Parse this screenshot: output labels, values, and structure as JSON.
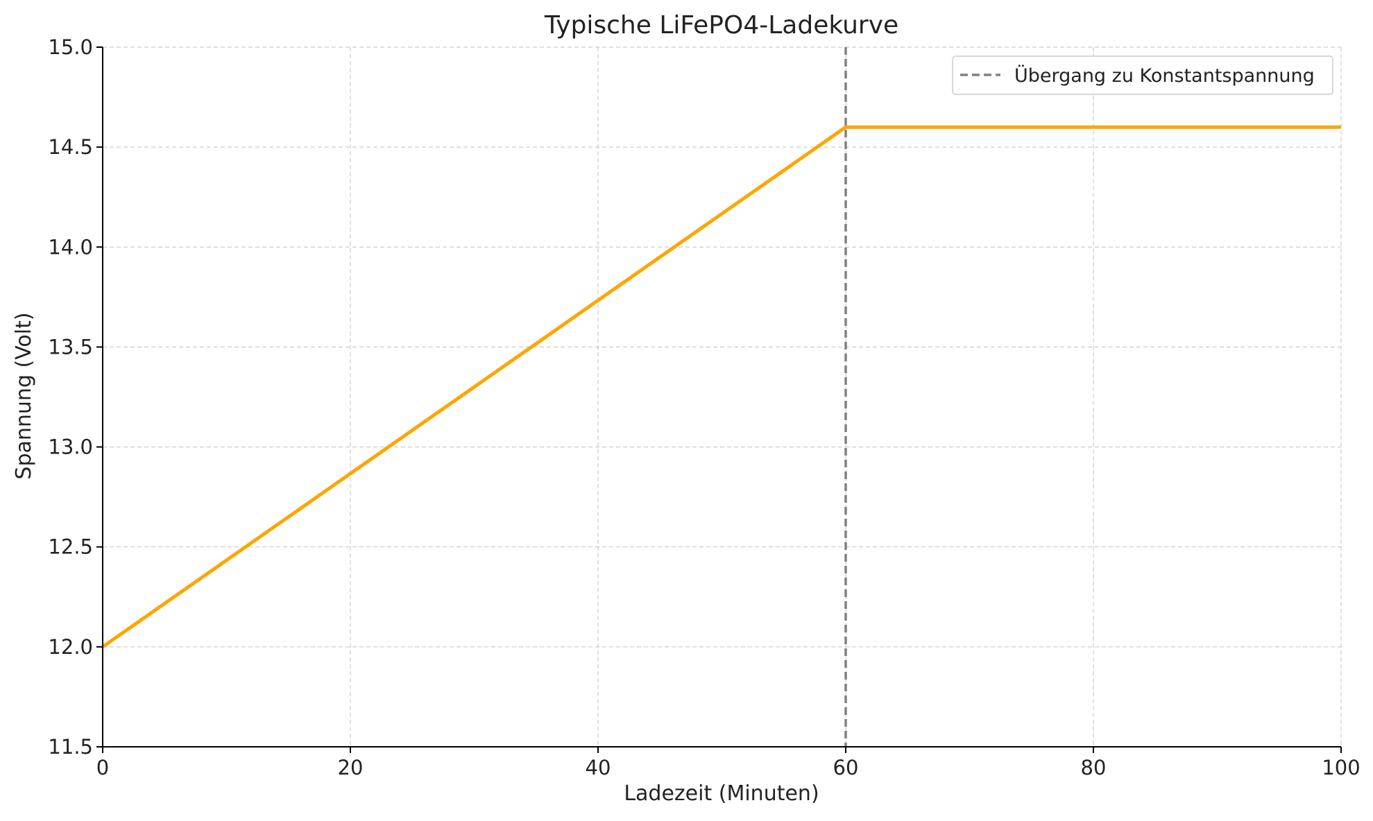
{
  "chart_data": {
    "type": "line",
    "title": "Typische LiFePO4-Ladekurve",
    "xlabel": "Ladezeit (Minuten)",
    "ylabel": "Spannung (Volt)",
    "xlim": [
      0,
      100
    ],
    "ylim": [
      11.5,
      15.0
    ],
    "x_ticks": [
      0,
      20,
      40,
      60,
      80,
      100
    ],
    "x_tick_labels": [
      "0",
      "20",
      "40",
      "60",
      "80",
      "100"
    ],
    "y_ticks": [
      11.5,
      12.0,
      12.5,
      13.0,
      13.5,
      14.0,
      14.5,
      15.0
    ],
    "y_tick_labels": [
      "11.5",
      "12.0",
      "12.5",
      "13.0",
      "13.5",
      "14.0",
      "14.5",
      "15.0"
    ],
    "grid": true,
    "series": [
      {
        "color": "#FFA500",
        "x": [
          0,
          60,
          100
        ],
        "y": [
          12.0,
          14.6,
          14.6
        ]
      }
    ],
    "annotations": [
      {
        "type": "vline",
        "x": 60,
        "style": "dashed",
        "color": "#808080",
        "label": "Übergang zu Konstantspannung"
      }
    ],
    "legend": {
      "position": "top-right",
      "entries": [
        "Übergang zu Konstantspannung"
      ]
    }
  }
}
